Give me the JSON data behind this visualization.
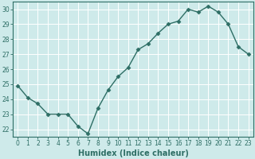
{
  "x": [
    0,
    1,
    2,
    3,
    4,
    5,
    6,
    7,
    8,
    9,
    10,
    11,
    12,
    13,
    14,
    15,
    16,
    17,
    18,
    19,
    20,
    21,
    22,
    23
  ],
  "y": [
    24.9,
    24.1,
    23.7,
    23.0,
    23.0,
    23.0,
    22.2,
    21.7,
    23.4,
    24.6,
    25.5,
    26.1,
    27.3,
    27.7,
    28.4,
    29.0,
    29.2,
    30.0,
    29.8,
    30.2,
    29.8,
    29.0,
    27.5,
    27.0
  ],
  "line_color": "#2e6e65",
  "marker": "D",
  "markersize": 2.5,
  "linewidth": 1.0,
  "bg_color": "#ceeaea",
  "grid_color": "#ffffff",
  "xlabel": "Humidex (Indice chaleur)",
  "ylim": [
    21.5,
    30.5
  ],
  "xlim": [
    -0.5,
    23.5
  ],
  "yticks": [
    22,
    23,
    24,
    25,
    26,
    27,
    28,
    29,
    30
  ],
  "xticks": [
    0,
    1,
    2,
    3,
    4,
    5,
    6,
    7,
    8,
    9,
    10,
    11,
    12,
    13,
    14,
    15,
    16,
    17,
    18,
    19,
    20,
    21,
    22,
    23
  ],
  "tick_fontsize": 5.5,
  "xlabel_fontsize": 7.0
}
